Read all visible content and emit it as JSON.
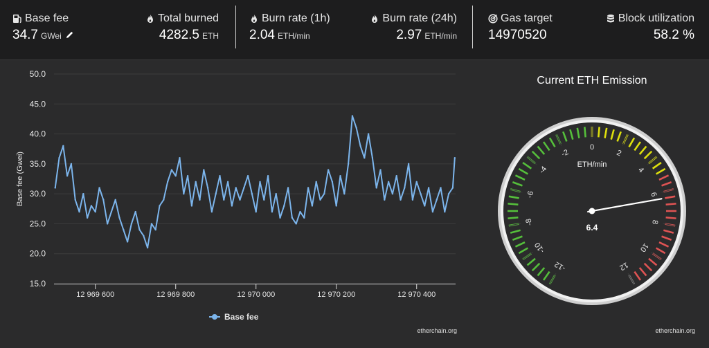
{
  "stats": [
    {
      "label": "Base fee",
      "value": "34.7",
      "unit": "GWei",
      "icon": "gas-pump-icon"
    },
    {
      "label": "Total burned",
      "value": "4282.5",
      "unit": "ETH",
      "icon": "flame-icon"
    },
    {
      "label": "Burn rate (1h)",
      "value": "2.04",
      "unit": "ETH/min",
      "icon": "flame-icon"
    },
    {
      "label": "Burn rate (24h)",
      "value": "2.97",
      "unit": "ETH/min",
      "icon": "flame-icon"
    },
    {
      "label": "Gas target",
      "value": "14970520",
      "unit": "",
      "icon": "target-icon"
    },
    {
      "label": "Block utilization",
      "value": "58.2 %",
      "unit": "",
      "icon": "database-icon"
    }
  ],
  "colors": {
    "line": "#7cb5ec",
    "grid": "#3c3c3d",
    "gauge_green": "#55bf3b",
    "gauge_yellow": "#dddf0d",
    "gauge_red": "#df5353"
  },
  "chart_data": [
    {
      "type": "line",
      "title": "",
      "xlabel": "",
      "ylabel": "Base fee (Gwei)",
      "xlim": [
        12969497,
        12970497
      ],
      "ylim": [
        15,
        50
      ],
      "x_ticks": [
        12969600,
        12969800,
        12970000,
        12970200,
        12970400
      ],
      "x_tick_labels": [
        "12 969 600",
        "12 969 800",
        "12 970 000",
        "12 970 200",
        "12 970 400"
      ],
      "y_ticks": [
        15,
        20,
        25,
        30,
        35,
        40,
        45,
        50
      ],
      "y_tick_labels": [
        "15.0",
        "20.0",
        "25.0",
        "30.0",
        "35.0",
        "40.0",
        "45.0",
        "50.0"
      ],
      "grid": true,
      "legend": "bottom-center",
      "series": [
        {
          "name": "Base fee",
          "x": [
            12969500,
            12969510,
            12969520,
            12969530,
            12969540,
            12969550,
            12969560,
            12969570,
            12969580,
            12969590,
            12969600,
            12969610,
            12969620,
            12969630,
            12969640,
            12969650,
            12969660,
            12969670,
            12969680,
            12969690,
            12969700,
            12969710,
            12969720,
            12969730,
            12969740,
            12969750,
            12969760,
            12969770,
            12969780,
            12969790,
            12969800,
            12969810,
            12969820,
            12969830,
            12969840,
            12969850,
            12969860,
            12969870,
            12969880,
            12969890,
            12969900,
            12969910,
            12969920,
            12969930,
            12969940,
            12969950,
            12969960,
            12969970,
            12969980,
            12969990,
            12970000,
            12970010,
            12970020,
            12970030,
            12970040,
            12970050,
            12970060,
            12970070,
            12970080,
            12970090,
            12970100,
            12970110,
            12970120,
            12970130,
            12970140,
            12970150,
            12970160,
            12970170,
            12970180,
            12970190,
            12970200,
            12970210,
            12970220,
            12970230,
            12970240,
            12970250,
            12970260,
            12970270,
            12970280,
            12970290,
            12970300,
            12970310,
            12970320,
            12970330,
            12970340,
            12970350,
            12970360,
            12970370,
            12970380,
            12970390,
            12970400,
            12970410,
            12970420,
            12970430,
            12970440,
            12970450,
            12970460,
            12970470,
            12970480,
            12970490,
            12970495
          ],
          "values": [
            31,
            36,
            38,
            33,
            35,
            29,
            27,
            30,
            26,
            28,
            27,
            31,
            29,
            25,
            27,
            29,
            26,
            24,
            22,
            25,
            27,
            24,
            23,
            21,
            25,
            24,
            28,
            29,
            32,
            34,
            33,
            36,
            30,
            33,
            28,
            32,
            29,
            34,
            31,
            27,
            30,
            33,
            29,
            32,
            28,
            31,
            29,
            31,
            33,
            30,
            27,
            32,
            29,
            33,
            27,
            30,
            26,
            28,
            31,
            26,
            25,
            27,
            26,
            31,
            28,
            32,
            29,
            30,
            34,
            32,
            28,
            33,
            30,
            35,
            43,
            41,
            38,
            36,
            40,
            36,
            31,
            34,
            29,
            32,
            30,
            33,
            29,
            31,
            35,
            29,
            32,
            30,
            28,
            31,
            27,
            29,
            31,
            27,
            30,
            31,
            36
          ]
        }
      ],
      "credit": "etherchain.org"
    },
    {
      "type": "gauge",
      "title": "Current ETH Emission",
      "unit": "ETH/min",
      "min": -12,
      "max": 12,
      "value": 6.4,
      "value_label": "6.4",
      "tick_labels": [
        "-12",
        "-10",
        "-8",
        "-6",
        "-4",
        "-2",
        "0",
        "2",
        "4",
        "6",
        "8",
        "10",
        "12"
      ],
      "bands": [
        {
          "from": -12,
          "to": 0,
          "color": "green"
        },
        {
          "from": 0,
          "to": 5,
          "color": "yellow"
        },
        {
          "from": 5,
          "to": 12,
          "color": "red"
        }
      ],
      "credit": "etherchain.org"
    }
  ]
}
